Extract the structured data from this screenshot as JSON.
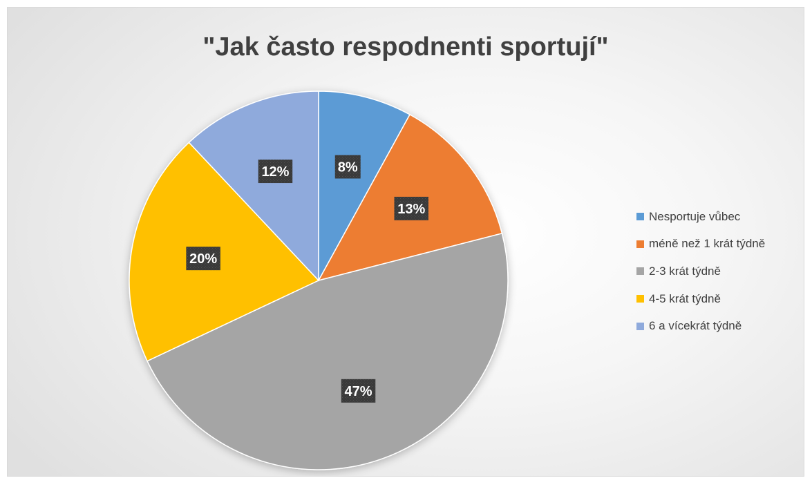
{
  "chart_data": {
    "type": "pie",
    "title": "\"Jak často respodnenti sportují\"",
    "categories": [
      "Nesportuje vůbec",
      "méně než 1 krát týdně",
      "2-3 krát týdně",
      "4-5 krát týdně",
      "6 a vícekrát týdně"
    ],
    "values": [
      8,
      13,
      47,
      20,
      12
    ],
    "data_labels": [
      "8%",
      "13%",
      "47%",
      "20%",
      "12%"
    ],
    "colors": [
      "#5b9bd5",
      "#ed7d31",
      "#a5a5a5",
      "#ffc000",
      "#8faadc"
    ],
    "legend_position": "right"
  }
}
